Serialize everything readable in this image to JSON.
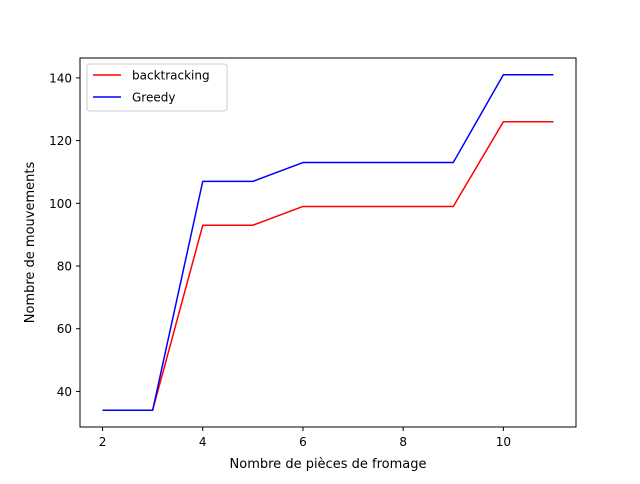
{
  "chart_data": {
    "type": "line",
    "title": "",
    "xlabel": "Nombre de pièces de fromage",
    "ylabel": "Nombre de mouvements",
    "x": [
      2,
      3,
      4,
      5,
      6,
      7,
      8,
      9,
      10,
      11
    ],
    "xlim": [
      1.55,
      11.45
    ],
    "ylim": [
      28.65,
      146.35
    ],
    "xticks": [
      2,
      4,
      6,
      8,
      10
    ],
    "yticks": [
      40,
      60,
      80,
      100,
      120,
      140
    ],
    "grid": false,
    "legend_position": "top-left",
    "series": [
      {
        "name": "backtracking",
        "color": "#ff0000",
        "values": [
          34,
          34,
          93,
          93,
          99,
          99,
          99,
          99,
          126,
          126
        ]
      },
      {
        "name": "Greedy",
        "color": "#0000ff",
        "values": [
          34,
          34,
          107,
          107,
          113,
          113,
          113,
          113,
          141,
          141
        ]
      }
    ]
  }
}
